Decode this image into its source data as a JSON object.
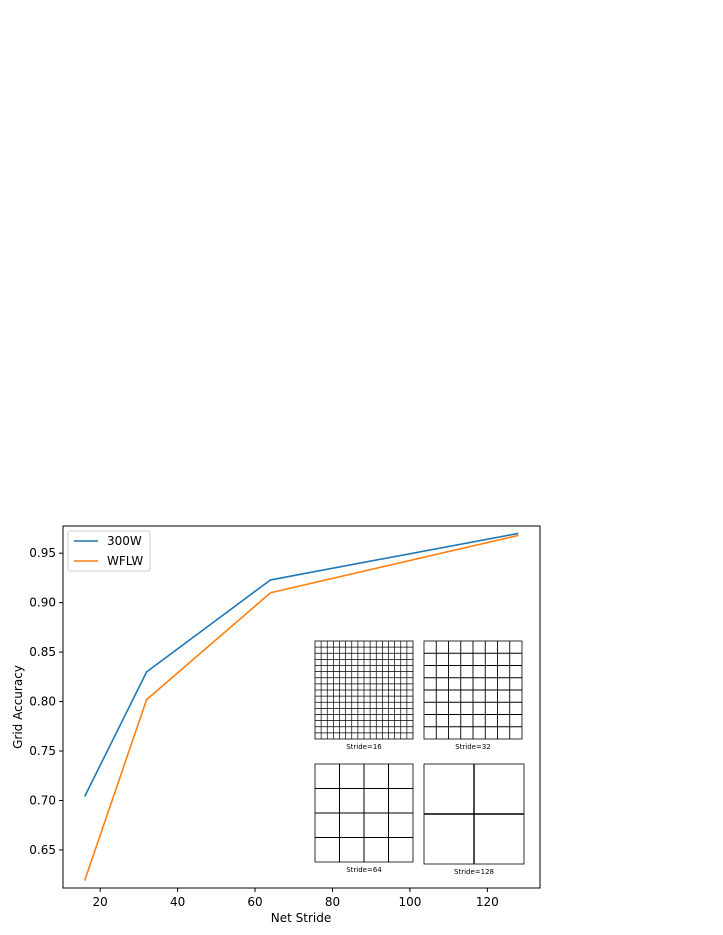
{
  "chart_data": {
    "type": "line",
    "title": "",
    "xlabel": "Net Stride",
    "ylabel": "Grid Accuracy",
    "xlim": [
      10.4,
      133.6
    ],
    "ylim": [
      0.6115,
      0.9775
    ],
    "xticks": [
      20,
      40,
      60,
      80,
      100,
      120
    ],
    "xtick_labels": [
      "20",
      "40",
      "60",
      "80",
      "100",
      "120"
    ],
    "yticks": [
      0.65,
      0.7,
      0.75,
      0.8,
      0.85,
      0.9,
      0.95
    ],
    "ytick_labels": [
      "0.65",
      "0.70",
      "0.75",
      "0.80",
      "0.85",
      "0.90",
      "0.95"
    ],
    "grid": false,
    "legend_position": "upper-left",
    "x": [
      16,
      32,
      64,
      128
    ],
    "series": [
      {
        "name": "300W",
        "color": "#1f77b4",
        "values": [
          0.704,
          0.83,
          0.923,
          0.97
        ]
      },
      {
        "name": "WFLW",
        "color": "#ff7f0e",
        "values": [
          0.619,
          0.802,
          0.91,
          0.968
        ]
      }
    ],
    "inset": {
      "panels": [
        {
          "caption": "Stride=16",
          "divisions": 16
        },
        {
          "caption": "Stride=32",
          "divisions": 8
        },
        {
          "caption": "Stride=64",
          "divisions": 4
        },
        {
          "caption": "Stride=128",
          "divisions": 2
        }
      ]
    }
  }
}
